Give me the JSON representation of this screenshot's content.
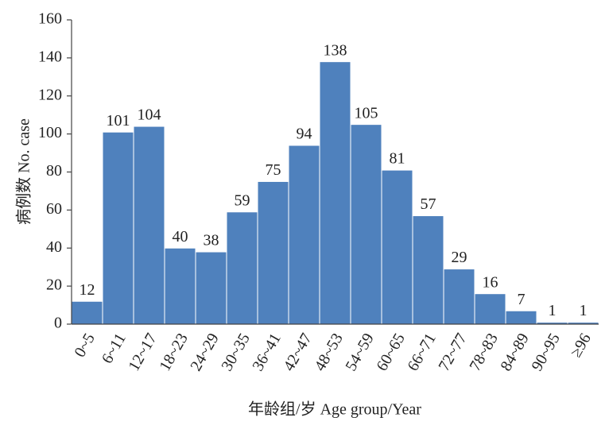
{
  "chart_data": {
    "type": "bar",
    "ylabel": "病例数 No. case",
    "xlabel": "年龄组/岁 Age group/Year",
    "categories": [
      "0~5",
      "6~11",
      "12~17",
      "18~23",
      "24~29",
      "30~35",
      "36~41",
      "42~47",
      "48~53",
      "54~59",
      "60~65",
      "66~71",
      "72~77",
      "78~83",
      "84~89",
      "90~95",
      "≥96"
    ],
    "values": [
      12,
      101,
      104,
      40,
      38,
      59,
      75,
      94,
      138,
      105,
      81,
      57,
      29,
      16,
      7,
      1,
      1
    ],
    "color": "#4f81bd",
    "ylim": [
      0,
      160
    ],
    "yticks": [
      0,
      20,
      40,
      60,
      80,
      100,
      120,
      140,
      160
    ],
    "grid": false
  }
}
